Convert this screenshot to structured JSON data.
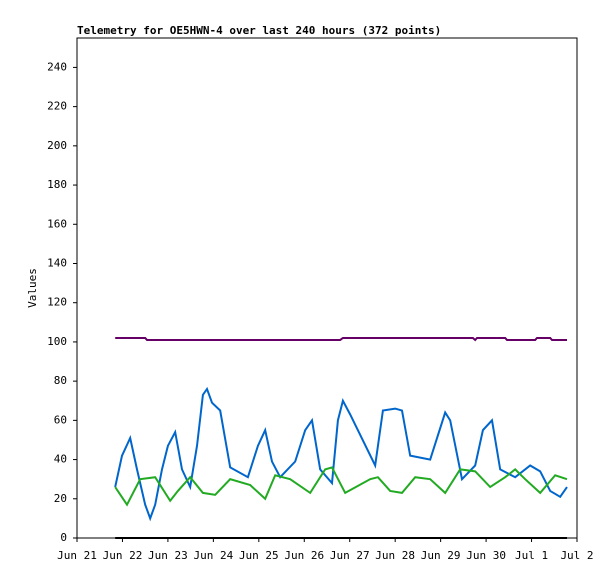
{
  "chart_data": {
    "type": "line",
    "title": "Telemetry for OE5HWN-4 over last 240 hours (372 points)",
    "y_label": "Values",
    "xlim": [
      0,
      11
    ],
    "xticks": [
      {
        "value": 0,
        "label": "Jun 21"
      },
      {
        "value": 1,
        "label": "Jun 22"
      },
      {
        "value": 2,
        "label": "Jun 23"
      },
      {
        "value": 3,
        "label": "Jun 24"
      },
      {
        "value": 4,
        "label": "Jun 25"
      },
      {
        "value": 5,
        "label": "Jun 26"
      },
      {
        "value": 6,
        "label": "Jun 27"
      },
      {
        "value": 7,
        "label": "Jun 28"
      },
      {
        "value": 8,
        "label": "Jun 29"
      },
      {
        "value": 9,
        "label": "Jun 30"
      },
      {
        "value": 10,
        "label": "Jul 1"
      },
      {
        "value": 11,
        "label": "Jul 2"
      }
    ],
    "ylim": [
      0,
      255
    ],
    "yticks": [
      0,
      20,
      40,
      60,
      80,
      100,
      120,
      140,
      160,
      180,
      200,
      220,
      240
    ],
    "series": [
      {
        "color": "#660066",
        "x": [
          0.84,
          1.5,
          1.54,
          5.79,
          5.85,
          8.71,
          8.76,
          8.8,
          9.42,
          9.46,
          10.08,
          10.12,
          10.41,
          10.45,
          10.78
        ],
        "values": [
          102,
          102,
          101,
          101,
          102,
          102,
          101,
          102,
          102,
          101,
          101,
          102,
          102,
          101,
          101
        ]
      },
      {
        "color": "#0066cc",
        "x": [
          0.84,
          0.99,
          1.17,
          1.32,
          1.5,
          1.61,
          1.72,
          1.87,
          2.0,
          2.16,
          2.31,
          2.49,
          2.64,
          2.77,
          2.86,
          2.97,
          3.15,
          3.37,
          3.76,
          3.98,
          4.14,
          4.29,
          4.47,
          4.8,
          5.02,
          5.17,
          5.35,
          5.61,
          5.74,
          5.85,
          6.01,
          6.56,
          6.73,
          7.0,
          7.15,
          7.33,
          7.77,
          8.1,
          8.21,
          8.47,
          8.76,
          8.93,
          9.13,
          9.31,
          9.64,
          9.97,
          10.19,
          10.41,
          10.63,
          10.78
        ],
        "values": [
          26,
          42,
          51,
          35,
          17,
          10,
          17,
          35,
          47,
          54,
          35,
          26,
          47,
          73,
          76,
          69,
          65,
          36,
          31,
          47,
          55,
          39,
          31,
          39,
          55,
          60,
          35,
          28,
          60,
          70,
          63,
          37,
          65,
          66,
          65,
          42,
          40,
          64,
          60,
          30,
          37,
          55,
          60,
          35,
          31,
          37,
          34,
          24,
          21,
          26
        ]
      },
      {
        "color": "#22aa22",
        "x": [
          0.84,
          1.1,
          1.39,
          1.72,
          2.05,
          2.22,
          2.49,
          2.77,
          3.04,
          3.37,
          3.81,
          4.14,
          4.36,
          4.69,
          5.13,
          5.46,
          5.61,
          5.9,
          6.45,
          6.62,
          6.89,
          7.15,
          7.44,
          7.77,
          8.1,
          8.43,
          8.76,
          9.09,
          9.42,
          9.64,
          9.86,
          10.19,
          10.52,
          10.78
        ],
        "values": [
          26,
          17,
          30,
          31,
          19,
          24,
          31,
          23,
          22,
          30,
          27,
          20,
          32,
          30,
          23,
          35,
          36,
          23,
          30,
          31,
          24,
          23,
          31,
          30,
          23,
          35,
          34,
          26,
          31,
          35,
          30,
          23,
          32,
          30
        ]
      },
      {
        "color": "#000000",
        "x": [
          0.84,
          10.78
        ],
        "values": [
          0,
          0
        ]
      }
    ]
  }
}
